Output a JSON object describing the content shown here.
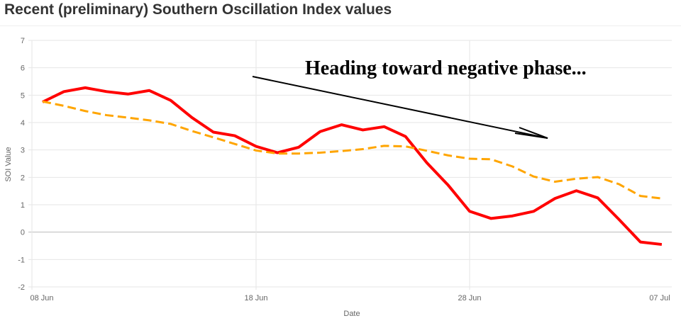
{
  "chart_data": {
    "type": "line",
    "title": "Recent (preliminary) Southern Oscillation Index values",
    "xlabel": "Date",
    "ylabel": "SOI Value",
    "ylim": [
      -2,
      7
    ],
    "yticks": [
      "7",
      "6",
      "5",
      "4",
      "3",
      "2",
      "1",
      "0",
      "-1",
      "-2"
    ],
    "xticks": [
      {
        "label": "08 Jun",
        "day": 0
      },
      {
        "label": "18 Jun",
        "day": 10
      },
      {
        "label": "28 Jun",
        "day": 20
      },
      {
        "label": "07 Jul",
        "day": 29
      }
    ],
    "x": [
      "08 Jun",
      "09 Jun",
      "10 Jun",
      "11 Jun",
      "12 Jun",
      "13 Jun",
      "14 Jun",
      "15 Jun",
      "16 Jun",
      "17 Jun",
      "18 Jun",
      "19 Jun",
      "20 Jun",
      "21 Jun",
      "22 Jun",
      "23 Jun",
      "24 Jun",
      "25 Jun",
      "26 Jun",
      "27 Jun",
      "28 Jun",
      "29 Jun",
      "30 Jun",
      "01 Jul",
      "02 Jul",
      "03 Jul",
      "04 Jul",
      "05 Jul",
      "06 Jul",
      "07 Jul"
    ],
    "grid": true,
    "series": [
      {
        "style": "solid",
        "color": "#ff0000",
        "values": [
          4.75,
          5.13,
          5.27,
          5.13,
          5.04,
          5.17,
          4.81,
          4.18,
          3.65,
          3.52,
          3.13,
          2.9,
          3.1,
          3.67,
          3.92,
          3.73,
          3.85,
          3.49,
          2.53,
          1.71,
          0.76,
          0.5,
          0.59,
          0.76,
          1.23,
          1.51,
          1.25,
          0.46,
          -0.36,
          -0.45
        ]
      },
      {
        "style": "dashed",
        "color": "#ffa500",
        "values": [
          4.77,
          4.61,
          4.42,
          4.27,
          4.18,
          4.08,
          3.95,
          3.69,
          3.46,
          3.22,
          2.98,
          2.87,
          2.87,
          2.9,
          2.96,
          3.03,
          3.15,
          3.13,
          2.97,
          2.8,
          2.68,
          2.66,
          2.4,
          2.03,
          1.84,
          1.95,
          2.01,
          1.75,
          1.32,
          1.23
        ]
      }
    ],
    "annotation": {
      "text": "Heading toward negative phase...",
      "arrow": "down-right"
    }
  }
}
